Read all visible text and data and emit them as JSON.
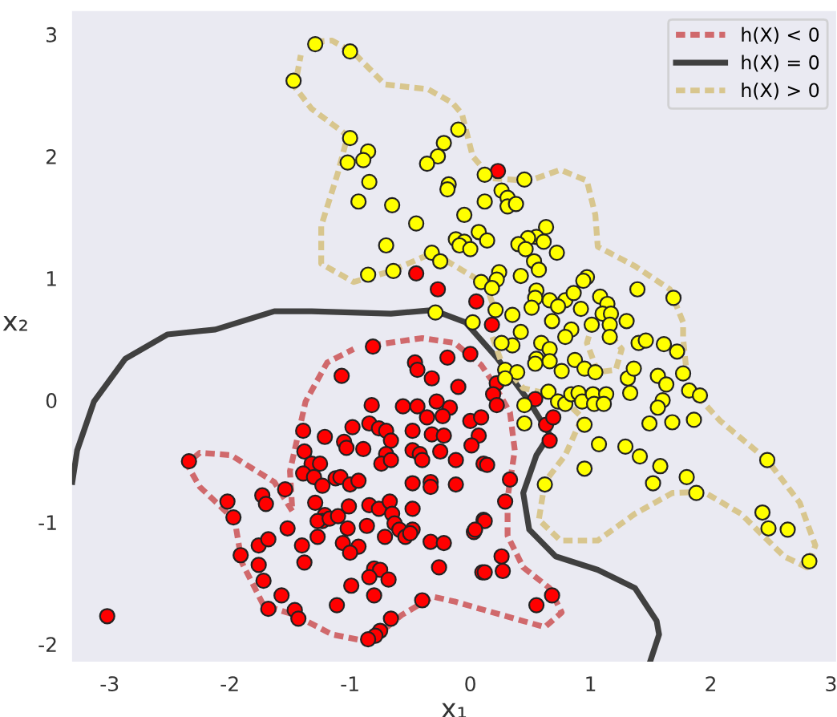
{
  "chart_data": {
    "type": "scatter",
    "xlabel": "x₁",
    "ylabel": "x₂",
    "xlim": [
      -3.32,
      3.05
    ],
    "ylim": [
      -2.15,
      3.2
    ],
    "xticks": [
      -3,
      -2,
      -1,
      0,
      1,
      2,
      3
    ],
    "yticks": [
      -2,
      -1,
      0,
      1,
      2,
      3
    ],
    "grid": false,
    "legend": "top right",
    "marker": "circle",
    "series": [
      {
        "color": "#ff0000",
        "x": [
          -0.81,
          -1.07,
          -0.46,
          -0.44,
          -0.19,
          -0.32,
          -0.1,
          0.0,
          -0.82,
          -0.56,
          -0.44,
          -0.28,
          -0.17,
          -0.36,
          -0.23,
          0.0,
          0.09,
          -0.98,
          -0.84,
          -0.76,
          -0.7,
          -0.66,
          -0.48,
          -0.32,
          -0.22,
          0.07,
          0.01,
          -1.39,
          -1.21,
          -1.05,
          -1.03,
          -0.89,
          -0.7,
          -0.74,
          -0.66,
          -0.48,
          -0.42,
          -0.4,
          -0.25,
          -0.12,
          -1.38,
          -1.32,
          -1.25,
          -1.39,
          -1.3,
          -1.23,
          -1.12,
          -1.08,
          -1.0,
          -0.93,
          -2.34,
          -2.02,
          -1.97,
          -1.73,
          -1.7,
          -1.54,
          -1.52,
          -1.76,
          -1.68,
          -1.91,
          -1.76,
          -1.72,
          -1.57,
          -1.68,
          -1.46,
          -1.43,
          -1.4,
          -1.38,
          -1.29,
          -1.21,
          -1.23,
          -1.27,
          -1.17,
          -1.1,
          -1.01,
          -0.84,
          -0.76,
          -0.67,
          -0.65,
          -0.63,
          -0.48,
          -0.86,
          -1.02,
          -1.06,
          -0.93,
          -1.0,
          -1.27,
          -0.71,
          -0.59,
          -0.48,
          -0.54,
          -0.5,
          -0.33,
          -0.22,
          -0.26,
          -0.8,
          -0.75,
          -0.84,
          -0.68,
          -0.99,
          -0.8,
          -1.11,
          -0.4,
          -0.66,
          -0.75,
          -0.79,
          -0.85,
          -3.02,
          -0.48,
          -0.33,
          -0.33,
          -0.12,
          0.03,
          0.11,
          0.1,
          0.11,
          0.22,
          0.19,
          0.22,
          0.54,
          0.63,
          0.69,
          0.66,
          0.14,
          0.33,
          0.29,
          0.12,
          0.04,
          0.26,
          0.27,
          0.12,
          0.55,
          0.68,
          -0.45,
          -0.27,
          0.05,
          0.23,
          0.18
        ],
        "values": [
          0.44,
          0.2,
          0.31,
          0.25,
          0.35,
          0.18,
          0.11,
          0.38,
          -0.04,
          -0.05,
          -0.05,
          -0.01,
          -0.06,
          -0.14,
          -0.13,
          -0.17,
          -0.14,
          -0.22,
          -0.19,
          -0.23,
          -0.25,
          -0.33,
          -0.25,
          -0.28,
          -0.29,
          -0.29,
          -0.37,
          -0.25,
          -0.3,
          -0.34,
          -0.39,
          -0.4,
          -0.44,
          -0.52,
          -0.49,
          -0.41,
          -0.44,
          -0.49,
          -0.42,
          -0.49,
          -0.42,
          -0.52,
          -0.52,
          -0.6,
          -0.63,
          -0.7,
          -0.64,
          -0.63,
          -0.69,
          -0.66,
          -0.5,
          -0.83,
          -0.96,
          -0.78,
          -0.85,
          -0.73,
          -1.05,
          -1.19,
          -1.14,
          -1.27,
          -1.35,
          -1.48,
          -1.6,
          -1.71,
          -1.72,
          -1.79,
          -1.19,
          -1.33,
          -0.84,
          -0.94,
          -0.99,
          -0.99,
          -0.97,
          -0.95,
          -0.87,
          -0.86,
          -0.89,
          -0.83,
          -0.93,
          -1.01,
          -0.89,
          -1.03,
          -1.05,
          -1.17,
          -1.2,
          -1.25,
          -1.12,
          -1.12,
          -1.06,
          -1.06,
          -1.12,
          -1.09,
          -1.16,
          -1.17,
          -1.37,
          -1.38,
          -1.39,
          -1.45,
          -1.47,
          -1.52,
          -1.6,
          -1.68,
          -1.64,
          -1.79,
          -1.89,
          -1.93,
          -1.96,
          -1.77,
          -0.68,
          -0.67,
          -0.71,
          -0.69,
          -1.08,
          -0.98,
          -1.41,
          -0.52,
          0.14,
          0.05,
          -0.04,
          0.01,
          -0.2,
          -0.14,
          -0.33,
          -0.53,
          -0.65,
          -0.83,
          -0.99,
          -1.06,
          -1.28,
          -1.4,
          -1.41,
          -1.68,
          -1.6,
          1.04,
          0.91,
          0.81,
          1.88,
          0.62
        ]
      },
      {
        "color": "#ffff00",
        "x": [
          -1.29,
          -1.0,
          -1.47,
          -1.0,
          -0.85,
          -0.89,
          -1.02,
          -0.84,
          -0.93,
          -0.65,
          -0.45,
          -0.7,
          -0.85,
          -0.64,
          -0.32,
          -0.25,
          -0.1,
          -0.22,
          -0.27,
          -0.36,
          -0.18,
          -0.19,
          -0.05,
          0.07,
          -0.12,
          -0.05,
          -0.09,
          0.0,
          0.09,
          0.02,
          -0.29,
          0.12,
          0.12,
          0.45,
          0.26,
          0.31,
          0.31,
          0.38,
          0.14,
          0.63,
          0.55,
          0.48,
          0.61,
          0.4,
          0.46,
          0.72,
          0.53,
          0.57,
          0.24,
          0.22,
          0.42,
          0.18,
          0.97,
          0.94,
          0.55,
          0.54,
          0.66,
          0.79,
          0.86,
          0.73,
          0.92,
          0.51,
          0.35,
          0.21,
          0.68,
          0.84,
          0.79,
          1.01,
          1.08,
          1.14,
          1.1,
          1.17,
          1.16,
          1.16,
          1.3,
          1.39,
          1.69,
          1.4,
          1.46,
          1.61,
          1.72,
          0.42,
          0.35,
          0.59,
          0.66,
          0.26,
          0.29,
          0.39,
          0.29,
          0.55,
          0.54,
          0.66,
          0.76,
          0.87,
          0.95,
          1.04,
          0.65,
          0.45,
          0.45,
          0.73,
          0.79,
          0.84,
          0.9,
          0.93,
          1.02,
          1.03,
          1.13,
          1.11,
          0.95,
          1.07,
          1.29,
          1.41,
          1.58,
          1.52,
          0.95,
          0.62,
          1.8,
          1.88,
          2.47,
          2.43,
          2.48,
          2.64,
          2.82,
          1.31,
          1.36,
          1.33,
          1.56,
          1.63,
          1.6,
          1.56,
          1.49,
          1.68,
          1.86,
          1.77,
          1.82,
          1.91
        ],
        "values": [
          2.92,
          2.86,
          2.62,
          2.15,
          2.04,
          1.97,
          1.95,
          1.79,
          1.63,
          1.6,
          1.45,
          1.27,
          1.03,
          1.06,
          1.21,
          1.14,
          2.22,
          2.11,
          2.0,
          1.94,
          1.77,
          1.73,
          1.52,
          1.38,
          1.32,
          1.3,
          1.27,
          1.24,
          0.97,
          0.64,
          0.72,
          1.85,
          1.63,
          1.81,
          1.72,
          1.66,
          1.59,
          1.61,
          1.31,
          1.42,
          1.34,
          1.33,
          1.3,
          1.28,
          1.24,
          1.21,
          1.14,
          1.07,
          1.05,
          0.99,
          1.02,
          0.92,
          1.01,
          0.98,
          0.9,
          0.84,
          0.82,
          0.82,
          0.88,
          0.77,
          0.75,
          0.76,
          0.7,
          0.74,
          0.65,
          0.58,
          0.52,
          0.62,
          0.85,
          0.79,
          0.71,
          0.71,
          0.62,
          0.52,
          0.65,
          0.91,
          0.84,
          0.47,
          0.49,
          0.46,
          0.4,
          0.56,
          0.45,
          0.47,
          0.42,
          0.47,
          0.25,
          0.23,
          0.18,
          0.34,
          0.3,
          0.32,
          0.24,
          0.33,
          0.26,
          0.23,
          0.07,
          -0.04,
          -0.19,
          -0.01,
          -0.03,
          0.05,
          0.06,
          -0.01,
          0.05,
          -0.03,
          0.05,
          -0.03,
          -0.2,
          -0.36,
          -0.38,
          -0.46,
          -0.54,
          -0.68,
          -0.56,
          -0.69,
          -0.63,
          -0.76,
          -0.49,
          -0.92,
          -1.05,
          -1.06,
          -1.32,
          0.18,
          0.26,
          0.06,
          0.2,
          0.13,
          0.0,
          -0.06,
          -0.19,
          -0.18,
          -0.16,
          0.22,
          0.08,
          0.04
        ]
      },
      {
        "type": "line",
        "name": "h(X) < 0",
        "color": "#d0696c",
        "line_style": "dashed",
        "marker": "none",
        "x": [
          -0.82,
          -0.4,
          -0.13,
          0.09,
          0.18,
          0.33,
          0.37,
          0.31,
          0.31,
          0.44,
          0.66,
          0.76,
          0.62,
          0.26,
          -0.13,
          -0.31,
          -0.57,
          -0.84,
          -1.15,
          -1.46,
          -1.72,
          -1.9,
          -1.96,
          -2.25,
          -2.36,
          -2.25,
          -1.99,
          -1.63,
          -1.48,
          -1.5,
          -1.37,
          -1.19,
          -0.97
        ],
        "values": [
          0.45,
          0.51,
          0.47,
          0.29,
          0.16,
          -0.1,
          -0.41,
          -0.8,
          -1.11,
          -1.37,
          -1.54,
          -1.74,
          -1.86,
          -1.76,
          -1.65,
          -1.61,
          -1.76,
          -1.98,
          -1.92,
          -1.76,
          -1.68,
          -1.33,
          -0.98,
          -0.71,
          -0.52,
          -0.43,
          -0.45,
          -0.67,
          -0.91,
          -0.58,
          -0.01,
          0.31,
          0.42
        ]
      },
      {
        "type": "line",
        "name": "h(X) = 0",
        "color": "#404040",
        "line_style": "solid",
        "marker": "none",
        "x": [
          -3.31,
          -3.27,
          -3.13,
          -2.87,
          -2.52,
          -2.12,
          -1.63,
          -1.32,
          -0.66,
          -0.31,
          -0.04,
          0.13,
          0.22,
          0.49,
          0.66,
          0.55,
          0.44,
          0.49,
          0.71,
          1.06,
          1.37,
          1.55,
          1.57,
          1.5
        ],
        "values": [
          -0.67,
          -0.41,
          -0.01,
          0.34,
          0.54,
          0.58,
          0.73,
          0.73,
          0.71,
          0.74,
          0.64,
          0.45,
          0.35,
          -0.01,
          -0.28,
          -0.45,
          -0.76,
          -1.06,
          -1.28,
          -1.39,
          -1.54,
          -1.81,
          -1.92,
          -2.13
        ]
      },
      {
        "type": "line",
        "name": "h(X) > 0",
        "color": "#d8c68e",
        "line_style": "dashed",
        "marker": "none",
        "x": [
          -1.29,
          -1.15,
          -0.97,
          -0.71,
          -0.35,
          -0.15,
          -0.07,
          0.02,
          0.18,
          0.49,
          0.75,
          0.97,
          1.04,
          1.06,
          1.37,
          1.66,
          1.77,
          1.77,
          1.81,
          2.08,
          2.47,
          2.74,
          2.87,
          2.8,
          2.61,
          2.25,
          1.94,
          1.68,
          1.37,
          1.06,
          0.75,
          0.57,
          0.62,
          0.79,
          0.93,
          0.75,
          0.44,
          0.26,
          0.18,
          0.2,
          0.13,
          -0.31,
          -0.66,
          -0.97,
          -1.24,
          -1.24,
          -1.1,
          -1.02,
          -1.32,
          -1.46,
          -1.41,
          null,
          1.02,
          0.97,
          1.06,
          1.21,
          1.26,
          1.13
        ],
        "values": [
          2.94,
          2.95,
          2.85,
          2.59,
          2.55,
          2.44,
          2.35,
          2.0,
          1.82,
          1.8,
          1.89,
          1.8,
          1.52,
          1.26,
          1.1,
          0.91,
          0.64,
          0.51,
          0.12,
          -0.17,
          -0.49,
          -0.84,
          -1.19,
          -1.37,
          -1.28,
          -0.93,
          -0.75,
          -0.76,
          -0.93,
          -1.15,
          -1.15,
          -0.98,
          -0.67,
          -0.45,
          -0.14,
          0.03,
          0.1,
          0.31,
          0.53,
          0.75,
          0.95,
          1.21,
          1.06,
          0.97,
          1.12,
          1.43,
          1.87,
          2.17,
          2.39,
          2.57,
          2.83,
          null,
          0.64,
          0.47,
          0.23,
          0.25,
          0.42,
          0.58
        ]
      }
    ]
  }
}
